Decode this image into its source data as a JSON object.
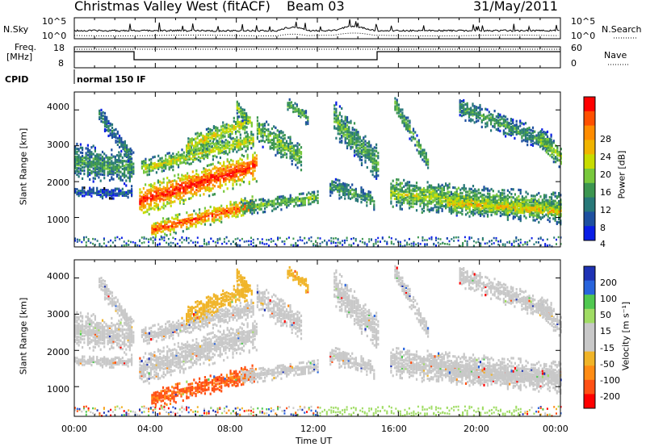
{
  "header": {
    "title": "Christmas Valley West (fitACF)",
    "beam": "Beam 03",
    "date": "31/May/2011"
  },
  "params": {
    "nsky_label": "N.Sky",
    "nsearch_label": "N.Search",
    "freq_label": "Freq.",
    "freq_unit": "[MHz]",
    "nave_label": "Nave",
    "cpid_label": "CPID",
    "mode_text": "normal 150 IF",
    "left_ticks_noise": [
      "10^5",
      "10^0"
    ],
    "right_ticks_noise": [
      "10^5",
      "10^0"
    ],
    "freq_ticks": [
      "18",
      "8"
    ],
    "nave_ticks": [
      "60",
      "0"
    ]
  },
  "chart_data": [
    {
      "type": "heatmap",
      "panel": "power",
      "ylabel": "Slant Range [km]",
      "ylim": [
        180,
        4500
      ],
      "yticks": [
        "1000",
        "2000",
        "3000",
        "4000"
      ],
      "x_ticks": [
        "00:00",
        "04:00",
        "08:00",
        "12:00",
        "16:00",
        "20:00",
        "00:00"
      ],
      "xlim_hours": [
        0,
        24
      ],
      "colorbar": {
        "label": "Power [dB]",
        "ticks": [
          "28",
          "24",
          "20",
          "16",
          "12",
          "8",
          "4"
        ],
        "colors": [
          "#ff0000",
          "#ff5000",
          "#ff8c00",
          "#f0b400",
          "#c8dc00",
          "#78c83c",
          "#3c9650",
          "#287878",
          "#1e50a0",
          "#0a1ee6"
        ]
      }
    },
    {
      "type": "heatmap",
      "panel": "velocity",
      "ylabel": "Slant Range [km]",
      "ylim": [
        180,
        4500
      ],
      "yticks": [
        "1000",
        "2000",
        "3000",
        "4000"
      ],
      "x_ticks": [
        "00:00",
        "04:00",
        "08:00",
        "12:00",
        "16:00",
        "20:00",
        "00:00"
      ],
      "xlabel": "Time UT",
      "colorbar": {
        "label": "Velocity [m s⁻¹]",
        "ticks": [
          "200",
          "100",
          "50",
          "15",
          "-15",
          "-50",
          "-100",
          "-200"
        ],
        "colors": [
          "#1e32b4",
          "#2864dc",
          "#50c850",
          "#a0dc64",
          "#c8c8c8",
          "#c8c8c8",
          "#f0b428",
          "#ff8c14",
          "#ff5014",
          "#ff0000"
        ]
      }
    }
  ]
}
